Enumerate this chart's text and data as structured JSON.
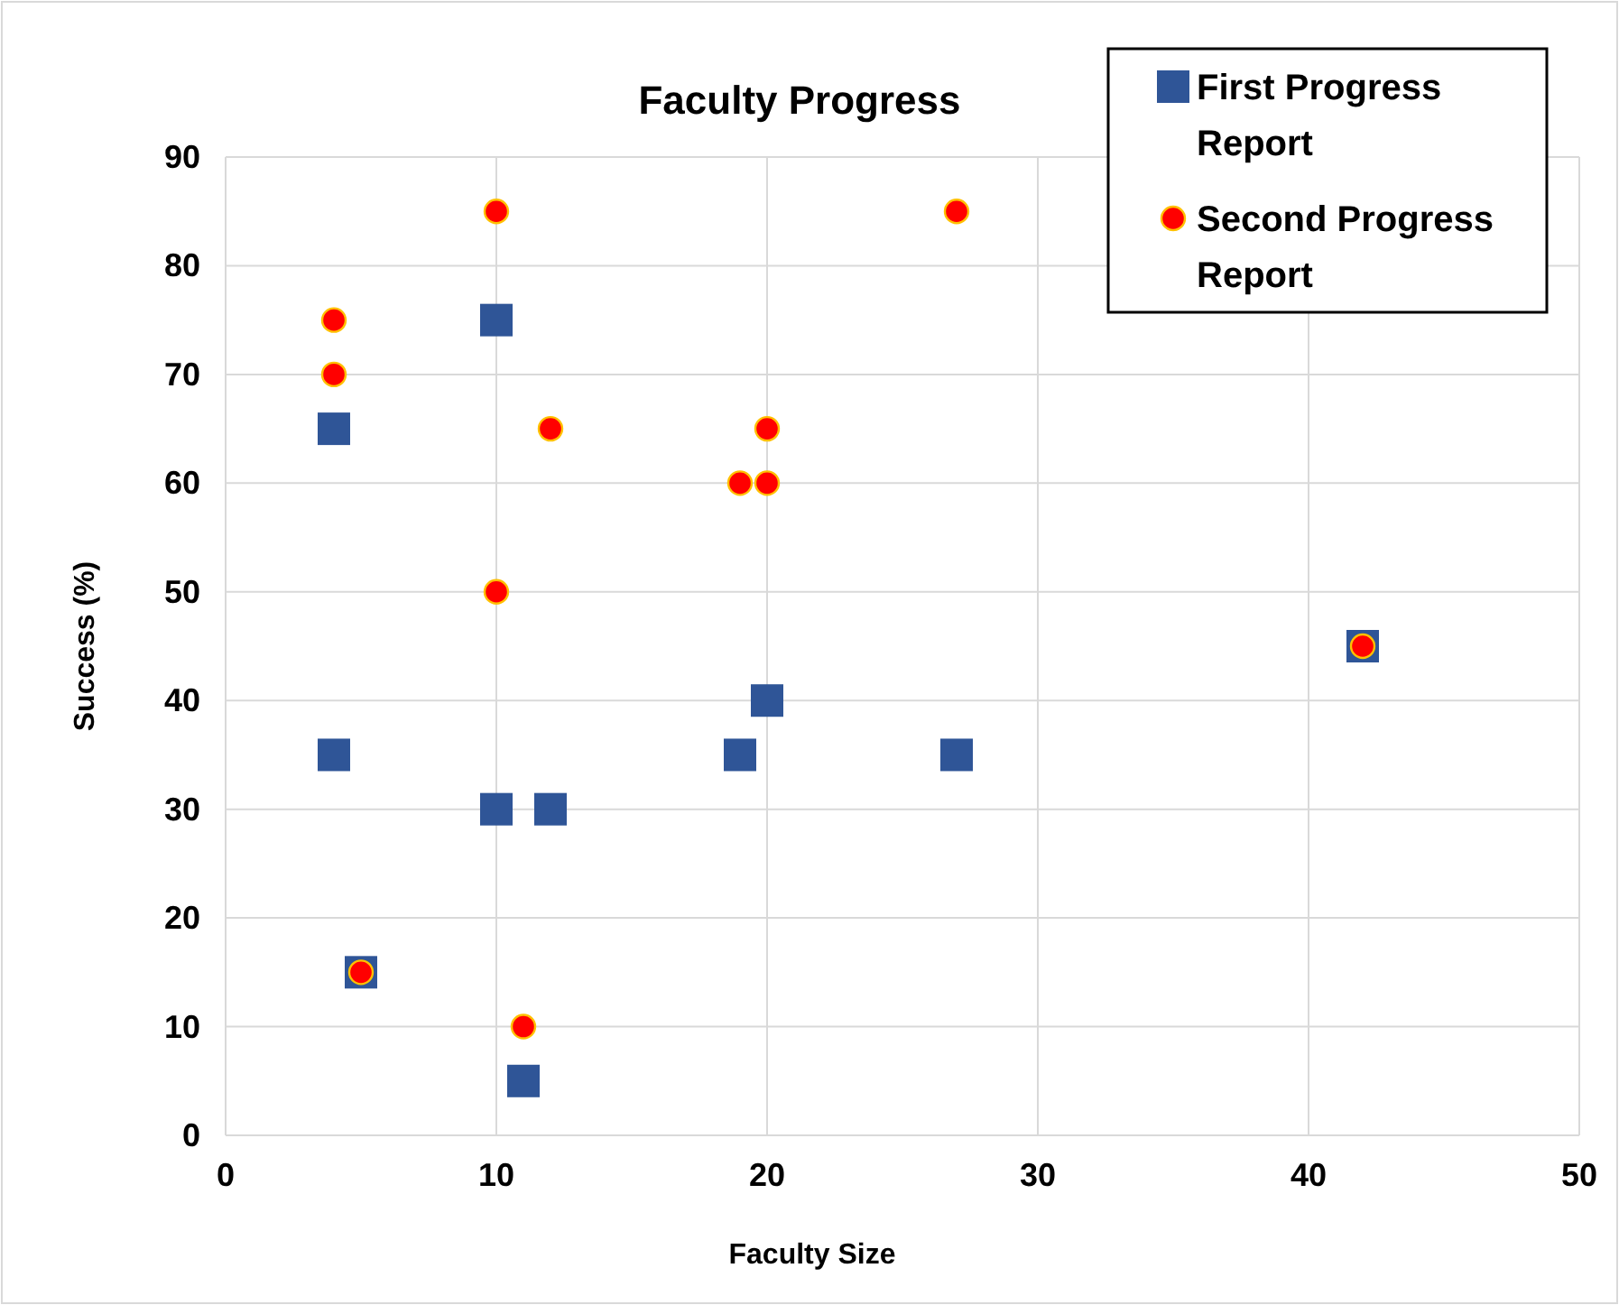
{
  "chart_data": {
    "type": "scatter",
    "title": "Faculty Progress",
    "xlabel": "Faculty Size",
    "ylabel": "Success (%)",
    "xlim": [
      0,
      50
    ],
    "xticks": [
      0,
      10,
      20,
      30,
      40,
      50
    ],
    "ylim": [
      0,
      90
    ],
    "yticks": [
      0,
      10,
      20,
      30,
      40,
      50,
      60,
      70,
      80,
      90
    ],
    "grid": true,
    "legend": "top right",
    "series": [
      {
        "name": "First Progress Report",
        "color": "#2f5597",
        "marker": "square",
        "x": [
          4,
          4,
          10,
          10,
          12,
          19,
          20,
          27,
          11,
          5,
          42
        ],
        "values": [
          65,
          35,
          75,
          30,
          30,
          35,
          40,
          35,
          5,
          15,
          45
        ]
      },
      {
        "name": "Second Progress Report",
        "color": "#ff0000",
        "marker": "circle",
        "x": [
          4,
          4,
          10,
          10,
          12,
          19,
          20,
          20,
          27,
          5,
          11,
          42
        ],
        "values": [
          75,
          70,
          85,
          50,
          65,
          60,
          65,
          60,
          85,
          15,
          10,
          45
        ]
      }
    ]
  }
}
